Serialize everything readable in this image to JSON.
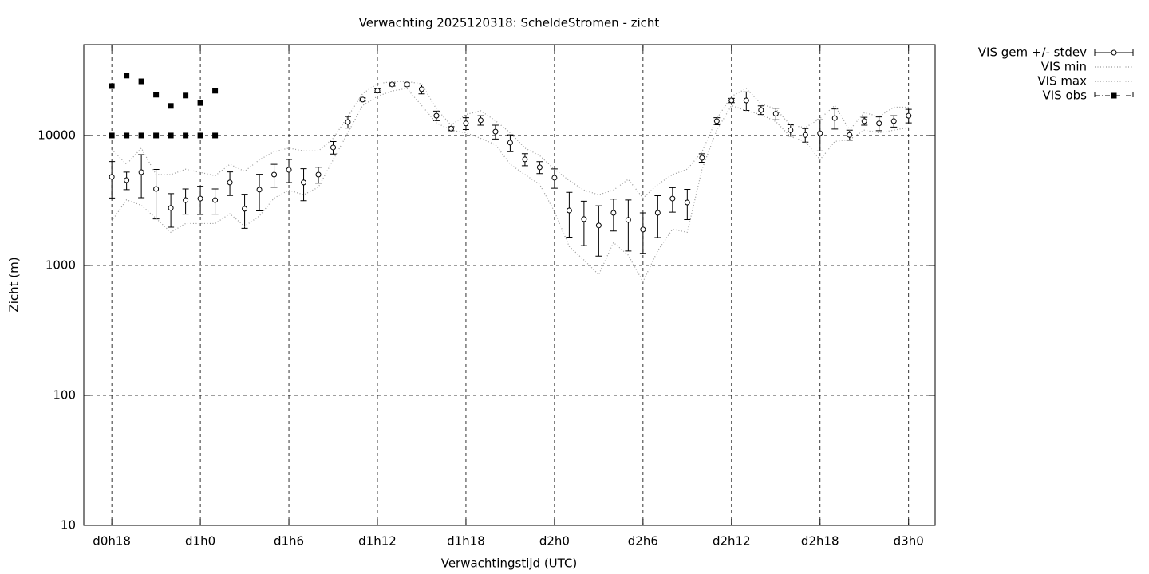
{
  "chart_data": {
    "type": "line",
    "title": "Verwachting 2025120318: ScheldeStromen - zicht",
    "x_label": "Verwachtingstijd (UTC)",
    "y_label": "Zicht (m)",
    "log_scale": "y",
    "grid": true,
    "legend": "outside-top-right",
    "xlim": [
      16.1,
      73.8
    ],
    "ylim": [
      10,
      50000
    ],
    "xticks": [
      {
        "value": 18,
        "label": "d0h18"
      },
      {
        "value": 24,
        "label": "d1h0"
      },
      {
        "value": 30,
        "label": "d1h6"
      },
      {
        "value": 36,
        "label": "d1h12"
      },
      {
        "value": 42,
        "label": "d1h18"
      },
      {
        "value": 48,
        "label": "d2h0"
      },
      {
        "value": 54,
        "label": "d2h6"
      },
      {
        "value": 60,
        "label": "d2h12"
      },
      {
        "value": 66,
        "label": "d2h18"
      },
      {
        "value": 72,
        "label": "d3h0"
      }
    ],
    "yticks": [
      10,
      100,
      1000,
      10000
    ],
    "x": [
      18,
      19,
      20,
      21,
      22,
      23,
      24,
      25,
      26,
      27,
      28,
      29,
      30,
      31,
      32,
      33,
      34,
      35,
      36,
      37,
      38,
      39,
      40,
      41,
      42,
      43,
      44,
      45,
      46,
      47,
      48,
      49,
      50,
      51,
      52,
      53,
      54,
      55,
      56,
      57,
      58,
      59,
      60,
      61,
      62,
      63,
      64,
      65,
      66,
      67,
      68,
      69,
      70,
      71,
      72
    ],
    "series": [
      {
        "name": "VIS gem +/- stdev",
        "style": "errorbars",
        "color": "#000000",
        "values": [
          4800,
          4530,
          5220,
          3880,
          2770,
          3180,
          3270,
          3180,
          4350,
          2730,
          3830,
          5000,
          5440,
          4350,
          5000,
          8090,
          12700,
          18900,
          22100,
          24700,
          24700,
          22700,
          14200,
          11300,
          12400,
          13100,
          10700,
          8810,
          6550,
          5690,
          4730,
          2650,
          2270,
          2030,
          2540,
          2240,
          1890,
          2540,
          3270,
          3050,
          6730,
          12900,
          18600,
          18600,
          15700,
          14700,
          11000,
          10100,
          10400,
          13600,
          10100,
          12900,
          12400,
          12900,
          14200
        ],
        "errors": [
          1500,
          700,
          1900,
          1600,
          800,
          700,
          800,
          700,
          900,
          800,
          1200,
          1000,
          1100,
          1200,
          700,
          900,
          1300,
          500,
          800,
          700,
          700,
          1800,
          1200,
          400,
          1300,
          1100,
          1300,
          1300,
          700,
          600,
          800,
          1000,
          850,
          850,
          700,
          950,
          650,
          900,
          700,
          800,
          500,
          800,
          700,
          3000,
          1200,
          1500,
          1100,
          1200,
          2800,
          2400,
          900,
          900,
          1500,
          1300,
          1700
        ]
      },
      {
        "name": "VIS min",
        "style": "dotted",
        "color": "#999999",
        "values": [
          2200,
          3200,
          2900,
          2300,
          1800,
          2100,
          2100,
          2100,
          2500,
          2000,
          2400,
          3300,
          3800,
          3500,
          4000,
          6500,
          10500,
          17000,
          20000,
          22000,
          23000,
          17000,
          12500,
          11000,
          10500,
          9500,
          8500,
          6000,
          5000,
          4200,
          2600,
          1400,
          1100,
          850,
          1500,
          1200,
          750,
          1300,
          1900,
          1800,
          5500,
          11000,
          17000,
          15500,
          14500,
          12800,
          9800,
          9000,
          6500,
          9000,
          9300,
          11000,
          10500,
          11000,
          11500
        ]
      },
      {
        "name": "VIS max",
        "style": "dotted",
        "color": "#999999",
        "values": [
          7800,
          6000,
          8000,
          5000,
          5000,
          5500,
          5200,
          4900,
          6000,
          5300,
          6500,
          7500,
          8000,
          7600,
          7600,
          9500,
          14000,
          21000,
          25000,
          26000,
          26000,
          25000,
          16000,
          12000,
          14500,
          15500,
          13000,
          10500,
          8000,
          7000,
          5500,
          4500,
          3800,
          3500,
          3800,
          4600,
          3300,
          4200,
          5000,
          5500,
          7500,
          13500,
          20000,
          23000,
          17500,
          16000,
          12000,
          11500,
          13500,
          17000,
          11000,
          15000,
          14000,
          16500,
          16500
        ]
      },
      {
        "name": "VIS obs",
        "style": "points",
        "color": "#000000",
        "x": [
          18,
          18,
          19,
          19,
          20,
          20,
          21,
          21,
          22,
          22,
          23,
          23,
          24,
          24,
          25,
          25
        ],
        "values": [
          24000,
          10000,
          28900,
          10000,
          26100,
          10000,
          20600,
          10000,
          16900,
          10000,
          20300,
          10000,
          17800,
          10000,
          22100,
          10000
        ]
      }
    ]
  }
}
